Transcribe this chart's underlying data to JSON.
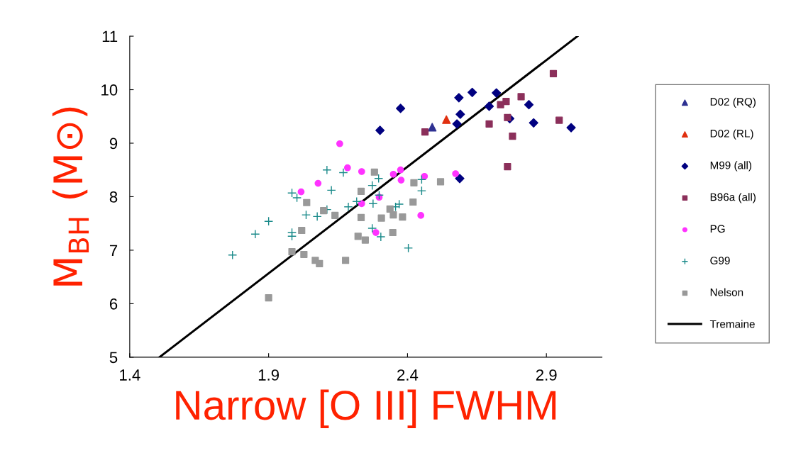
{
  "chart_data": {
    "type": "scatter",
    "xlabel": "Narrow [O III] FWHM",
    "ylabel": "M$_{BH}$ (M⊙)",
    "xlim": [
      1.4,
      3.1
    ],
    "ylim": [
      5,
      11
    ],
    "xticks": [
      1.4,
      1.9,
      2.4,
      2.9
    ],
    "yticks": [
      5,
      6,
      7,
      8,
      9,
      10,
      11
    ],
    "grid": false,
    "legend": "right",
    "series": [
      {
        "name": "D02 (RQ)",
        "color": "#2e3192",
        "marker": "triangle",
        "x": [
          2.489
        ],
        "values": [
          9.3
        ]
      },
      {
        "name": "D02 (RL)",
        "color": "#e03010",
        "marker": "triangle",
        "x": [
          2.54
        ],
        "values": [
          9.44
        ]
      },
      {
        "name": "M99 (all)",
        "color": "#000080",
        "marker": "diamond",
        "x": [
          2.301,
          2.375,
          2.585,
          2.633,
          2.72,
          2.694,
          2.59,
          2.578,
          2.837,
          2.854,
          2.989,
          2.768,
          2.588
        ],
        "values": [
          9.24,
          9.65,
          9.85,
          9.95,
          9.94,
          9.69,
          9.54,
          9.36,
          9.72,
          9.38,
          9.29,
          9.46,
          8.34
        ]
      },
      {
        "name": "B96a (all)",
        "color": "#8b2f5a",
        "marker": "square",
        "x": [
          2.925,
          2.809,
          2.755,
          2.735,
          2.76,
          2.694,
          2.946,
          2.778,
          2.76,
          2.463
        ],
        "values": [
          10.3,
          9.87,
          9.78,
          9.72,
          9.48,
          9.36,
          9.43,
          9.13,
          8.56,
          9.21
        ]
      },
      {
        "name": "PG",
        "color": "#ff33ff",
        "marker": "circle",
        "x": [
          2.156,
          2.184,
          2.235,
          2.078,
          2.017,
          2.298,
          2.235,
          2.286,
          2.349,
          2.375,
          2.377,
          2.461,
          2.448,
          2.573
        ],
        "values": [
          8.99,
          8.54,
          8.47,
          8.25,
          8.09,
          7.99,
          7.87,
          7.33,
          8.42,
          8.5,
          8.31,
          8.38,
          7.65,
          8.43
        ]
      },
      {
        "name": "G99",
        "color": "#1a8a8a",
        "marker": "cross",
        "x": [
          1.77,
          1.852,
          1.9,
          1.984,
          1.984,
          1.984,
          2.002,
          2.035,
          2.075,
          2.11,
          2.169,
          2.126,
          2.11,
          2.187,
          2.217,
          2.276,
          2.273,
          2.296,
          2.298,
          2.37,
          2.357,
          2.451,
          2.451,
          2.273,
          2.304,
          2.403
        ],
        "values": [
          6.91,
          7.3,
          7.54,
          7.33,
          7.26,
          8.07,
          7.98,
          7.66,
          7.63,
          8.5,
          8.45,
          8.12,
          7.76,
          7.81,
          7.91,
          7.87,
          8.21,
          8.34,
          8.03,
          7.86,
          7.81,
          8.32,
          8.11,
          7.41,
          7.25,
          7.04
        ]
      },
      {
        "name": "Nelson",
        "color": "#999999",
        "marker": "square",
        "x": [
          2.037,
          2.098,
          2.019,
          1.984,
          2.027,
          2.068,
          2.083,
          2.177,
          1.9,
          2.139,
          2.281,
          2.233,
          2.233,
          2.222,
          2.248,
          2.306,
          2.337,
          2.349,
          2.382,
          2.347,
          2.423,
          2.42,
          2.519
        ],
        "values": [
          7.89,
          7.74,
          7.37,
          6.97,
          6.92,
          6.81,
          6.75,
          6.81,
          6.11,
          7.65,
          8.46,
          8.1,
          7.61,
          7.26,
          7.19,
          7.6,
          7.77,
          7.66,
          7.62,
          7.33,
          8.26,
          7.9,
          8.28
        ]
      },
      {
        "name": "Tremaine",
        "type": "line",
        "color": "#000000",
        "marker": "none",
        "line_style": "solid",
        "x": [
          1.507,
          3.012
        ],
        "values": [
          5,
          11
        ]
      }
    ]
  }
}
